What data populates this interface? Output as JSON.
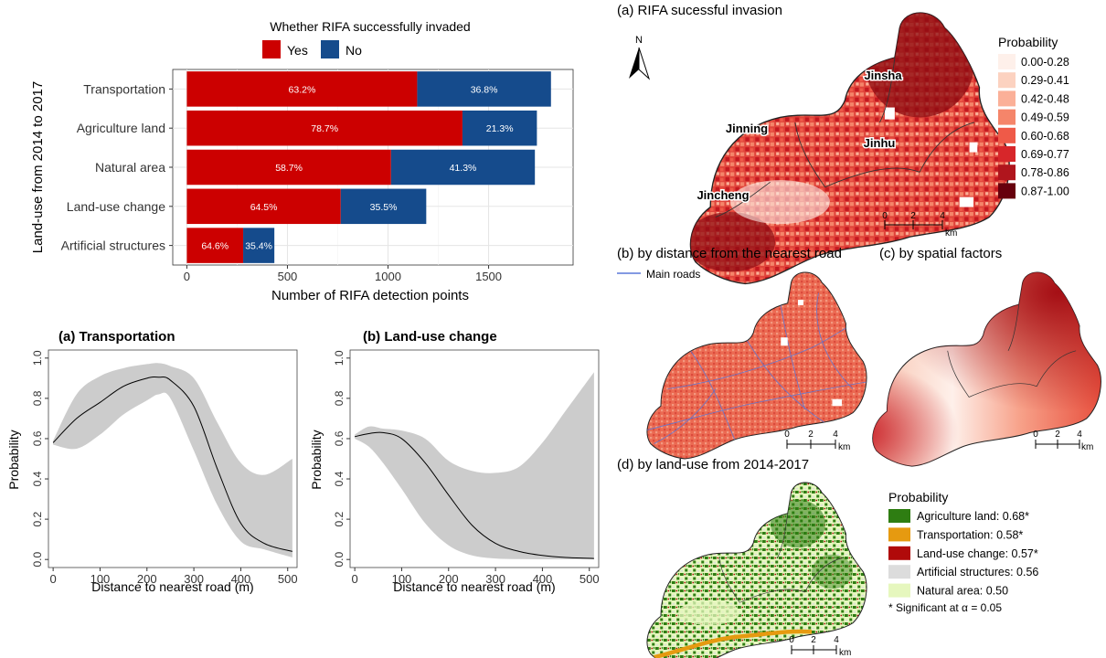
{
  "colors": {
    "yes": "#CC0000",
    "no": "#154B8C",
    "ribbon": "#CCCCCC",
    "agri": "#2E7D12",
    "transport": "#E69A10",
    "landchange": "#B00A0A",
    "artificial": "#DCDCDC",
    "natural": "#E6F7BE",
    "road": "#5A78D8"
  },
  "chart_data": [
    {
      "type": "bar",
      "orientation": "horizontal",
      "stacked": true,
      "legend_title": "Whether RIFA successfully invaded",
      "legend_position": "top",
      "categories": [
        "Transportation",
        "Agriculture land",
        "Natural area",
        "Land-use change",
        "Artificial structures"
      ],
      "series": [
        {
          "name": "Yes",
          "values": [
            1145,
            1370,
            1015,
            765,
            280
          ],
          "labels": [
            "63.2%",
            "78.7%",
            "58.7%",
            "64.5%",
            "64.6%"
          ]
        },
        {
          "name": "No",
          "values": [
            665,
            370,
            715,
            425,
            155
          ],
          "labels": [
            "36.8%",
            "21.3%",
            "41.3%",
            "35.5%",
            "35.4%"
          ]
        }
      ],
      "xlabel": "Number of RIFA detection points",
      "ylabel": "Land-use from 2014 to 2017",
      "xlim": [
        -70,
        1920
      ],
      "xticks": [
        0,
        500,
        1000,
        1500
      ]
    },
    {
      "type": "line",
      "title": "(a) Transportation",
      "xlabel": "Distance to nearest road (m)",
      "ylabel": "Probability",
      "xlim": [
        -10,
        520
      ],
      "ylim": [
        -0.04,
        1.04
      ],
      "xticks": [
        0,
        100,
        200,
        300,
        400,
        500
      ],
      "yticks": [
        "0.0",
        "0.2",
        "0.4",
        "0.6",
        "0.8",
        "1.0"
      ],
      "x": [
        0,
        50,
        100,
        150,
        200,
        225,
        250,
        300,
        350,
        400,
        450,
        510
      ],
      "fit": [
        0.58,
        0.7,
        0.78,
        0.86,
        0.9,
        0.905,
        0.89,
        0.76,
        0.45,
        0.18,
        0.08,
        0.04
      ],
      "lower": [
        0.57,
        0.55,
        0.62,
        0.72,
        0.79,
        0.82,
        0.8,
        0.54,
        0.27,
        0.09,
        0.05,
        0.01
      ],
      "upper": [
        0.59,
        0.82,
        0.91,
        0.95,
        0.97,
        0.975,
        0.96,
        0.9,
        0.68,
        0.48,
        0.42,
        0.5
      ]
    },
    {
      "type": "line",
      "title": "(b) Land-use change",
      "xlabel": "Distance to nearest road (m)",
      "ylabel": "Probability",
      "xlim": [
        -10,
        520
      ],
      "ylim": [
        -0.04,
        1.04
      ],
      "xticks": [
        0,
        100,
        200,
        300,
        400,
        500
      ],
      "yticks": [
        "0.0",
        "0.2",
        "0.4",
        "0.6",
        "0.8",
        "1.0"
      ],
      "x": [
        0,
        30,
        60,
        100,
        150,
        200,
        250,
        300,
        350,
        400,
        450,
        510
      ],
      "fit": [
        0.61,
        0.625,
        0.63,
        0.6,
        0.48,
        0.32,
        0.17,
        0.08,
        0.04,
        0.02,
        0.01,
        0.005
      ],
      "lower": [
        0.6,
        0.56,
        0.48,
        0.35,
        0.18,
        0.07,
        0.02,
        0.005,
        0.002,
        0.001,
        0.001,
        0.001
      ],
      "upper": [
        0.62,
        0.66,
        0.65,
        0.64,
        0.6,
        0.49,
        0.44,
        0.43,
        0.46,
        0.58,
        0.74,
        0.93
      ]
    }
  ],
  "maps": {
    "a": {
      "title": "(a) RIFA sucessful invasion",
      "north": "N",
      "legend_title": "Probability",
      "classes": [
        "0.00-0.28",
        "0.29-0.41",
        "0.42-0.48",
        "0.49-0.59",
        "0.60-0.68",
        "0.69-0.77",
        "0.78-0.86",
        "0.87-1.00"
      ],
      "class_colors": [
        "#FEF0EA",
        "#FCD2C0",
        "#FBB098",
        "#F5856A",
        "#EF5A48",
        "#D7262A",
        "#B0151D",
        "#67000D"
      ],
      "districts": [
        "Jinsha",
        "Jinning",
        "Jinhu",
        "Jincheng"
      ]
    },
    "b": {
      "title": "(b) by distance from the nearest road",
      "legend_label": "Main roads"
    },
    "c": {
      "title": "(c) by spatial factors"
    },
    "d": {
      "title": "(d) by land-use from 2014-2017",
      "legend_title": "Probability",
      "items": [
        "Agriculture land: 0.68*",
        "Transportation: 0.58*",
        "Land-use change: 0.57*",
        "Artificial structures: 0.56",
        "Natural area: 0.50"
      ],
      "note": "* Significant at α = 0.05"
    },
    "scalebar": {
      "ticks": [
        "0",
        "2",
        "4"
      ],
      "unit": "km"
    }
  }
}
